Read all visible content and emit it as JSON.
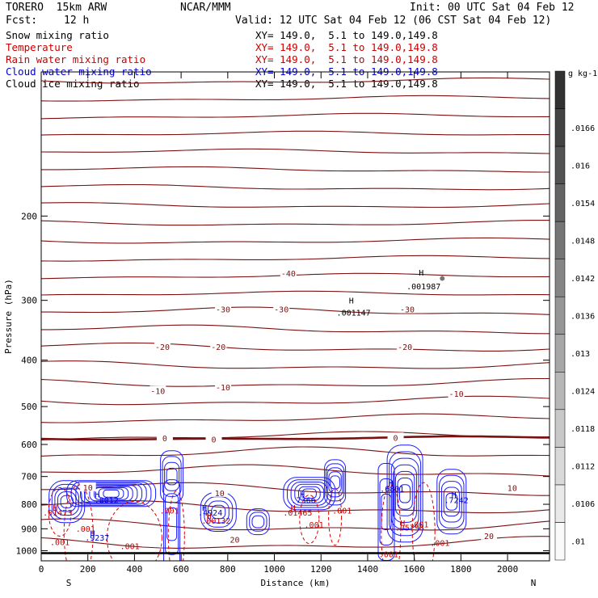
{
  "header": {
    "model": "TORERO  15km ARW",
    "center": "NCAR/MMM",
    "init": "Init: 00 UTC Sat 04 Feb 12",
    "fcst_label": "Fcst:",
    "fcst_value": "12 h",
    "valid": "Valid: 12 UTC Sat 04 Feb 12 (06 CST Sat 04 Feb 12)"
  },
  "fields": [
    {
      "name": "Snow mixing ratio",
      "color": "#000000",
      "xy": "XY= 149.0,  5.1 to 149.0,149.8",
      "xy_color": "#000000"
    },
    {
      "name": "Temperature",
      "color": "#cc0000",
      "xy": "XY= 149.0,  5.1 to 149.0,149.8",
      "xy_color": "#cc0000"
    },
    {
      "name": "Rain water mixing ratio",
      "color": "#cc0000",
      "xy": "XY= 149.0,  5.1 to 149.0,149.8",
      "xy_color": "#cc0000"
    },
    {
      "name": "Cloud water mixing ratio",
      "color": "#0000cc",
      "xy": "XY= 149.0,  5.1 to 149.0,149.8",
      "xy_color": "#0000cc"
    },
    {
      "name": "Cloud ice mixing ratio",
      "color": "#000000",
      "xy": "XY= 149.0,  5.1 to 149.0,149.8",
      "xy_color": "#000000"
    }
  ],
  "chart_data": {
    "type": "contour",
    "xlabel": "Distance (km)",
    "ylabel": "Pressure (hPa)",
    "xlim": [
      0,
      2180
    ],
    "ylim": [
      1050,
      100
    ],
    "y_scale": "log",
    "x_ticks": [
      0,
      200,
      400,
      600,
      800,
      1000,
      1200,
      1400,
      1600,
      1800,
      2000
    ],
    "y_ticks": [
      200,
      300,
      400,
      500,
      600,
      700,
      800,
      900,
      1000
    ],
    "x_end_labels": {
      "left": "S",
      "right": "N"
    },
    "colorbar": {
      "unit": "g kg-1",
      "labels": [
        ".01",
        ".0106",
        ".0112",
        ".0118",
        ".0124",
        ".013",
        ".0136",
        ".0142",
        ".0148",
        ".0154",
        ".016",
        ".0166"
      ]
    },
    "temperature_labels": [
      {
        "text": "-40",
        "x": 1060,
        "p": 263
      },
      {
        "text": "-30",
        "x": 780,
        "p": 313
      },
      {
        "text": "-30",
        "x": 1030,
        "p": 313
      },
      {
        "text": "-30",
        "x": 1570,
        "p": 313
      },
      {
        "text": "-20",
        "x": 520,
        "p": 375
      },
      {
        "text": "-20",
        "x": 760,
        "p": 375
      },
      {
        "text": "-20",
        "x": 1560,
        "p": 375
      },
      {
        "text": "-10",
        "x": 500,
        "p": 463
      },
      {
        "text": "-10",
        "x": 780,
        "p": 455
      },
      {
        "text": "-10",
        "x": 1780,
        "p": 470
      },
      {
        "text": "0",
        "x": 530,
        "p": 582
      },
      {
        "text": "0",
        "x": 740,
        "p": 585
      },
      {
        "text": "0",
        "x": 1520,
        "p": 580
      },
      {
        "text": "10",
        "x": 200,
        "p": 737
      },
      {
        "text": "10",
        "x": 765,
        "p": 757
      },
      {
        "text": "10",
        "x": 2020,
        "p": 738
      },
      {
        "text": "20",
        "x": 830,
        "p": 948
      },
      {
        "text": "20",
        "x": 1920,
        "p": 930
      }
    ],
    "extrema_labels": [
      {
        "text": "H",
        "x": 1630,
        "p": 262,
        "color": "#000000"
      },
      {
        "text": ".001987",
        "x": 1640,
        "p": 280,
        "color": "#000000"
      },
      {
        "text": "H",
        "x": 1330,
        "p": 300,
        "color": "#000000"
      },
      {
        "text": ".001147",
        "x": 1340,
        "p": 318,
        "color": "#000000"
      },
      {
        "text": "H",
        "x": 240,
        "p": 762,
        "color": "#0000cc"
      },
      {
        "text": ".8012",
        "x": 280,
        "p": 783,
        "color": "#0000cc"
      },
      {
        "text": "H",
        "x": 1120,
        "p": 762,
        "color": "#0000cc"
      },
      {
        "text": ".7366",
        "x": 1125,
        "p": 783,
        "color": "#0000cc"
      },
      {
        "text": "H",
        "x": 1500,
        "p": 722,
        "color": "#0000cc"
      },
      {
        "text": ".6801",
        "x": 1505,
        "p": 742,
        "color": "#0000cc"
      },
      {
        "text": "H",
        "x": 1770,
        "p": 763,
        "color": "#0000cc"
      },
      {
        "text": ".7242",
        "x": 1780,
        "p": 783,
        "color": "#0000cc"
      },
      {
        "text": "H",
        "x": 700,
        "p": 812,
        "color": "#0000cc"
      },
      {
        "text": ".4924",
        "x": 725,
        "p": 832,
        "color": "#0000cc"
      },
      {
        "text": "H",
        "x": 220,
        "p": 918,
        "color": "#0000cc"
      },
      {
        "text": ".9237",
        "x": 240,
        "p": 938,
        "color": "#0000cc"
      },
      {
        "text": "H",
        "x": 60,
        "p": 812,
        "color": "#cc0000"
      },
      {
        "text": ".01473",
        "x": 70,
        "p": 832,
        "color": "#cc0000"
      },
      {
        "text": "H",
        "x": 1080,
        "p": 812,
        "color": "#cc0000"
      },
      {
        "text": ".01465",
        "x": 1100,
        "p": 832,
        "color": "#cc0000"
      },
      {
        "text": "H",
        "x": 720,
        "p": 845,
        "color": "#cc0000"
      },
      {
        "text": ".00132",
        "x": 750,
        "p": 865,
        "color": "#cc0000"
      },
      {
        "text": "H",
        "x": 1550,
        "p": 875,
        "color": "#cc0000"
      },
      {
        "text": ".05798",
        "x": 1580,
        "p": 893,
        "color": "#cc0000"
      },
      {
        "text": ".001",
        "x": 190,
        "p": 898,
        "color": "#cc0000"
      },
      {
        "text": ".001",
        "x": 550,
        "p": 823,
        "color": "#cc0000"
      },
      {
        "text": ".001",
        "x": 1290,
        "p": 823,
        "color": "#cc0000"
      },
      {
        "text": ".001",
        "x": 1170,
        "p": 882,
        "color": "#cc0000"
      },
      {
        "text": ".001",
        "x": 1620,
        "p": 880,
        "color": "#cc0000"
      },
      {
        "text": ".001",
        "x": 1710,
        "p": 963,
        "color": "#cc0000"
      },
      {
        "text": ".001",
        "x": 380,
        "p": 978,
        "color": "#cc0000"
      },
      {
        "text": ".001",
        "x": 1490,
        "p": 1016,
        "color": "#cc0000"
      },
      {
        "text": ".001",
        "x": 80,
        "p": 958,
        "color": "#cc0000"
      }
    ]
  }
}
